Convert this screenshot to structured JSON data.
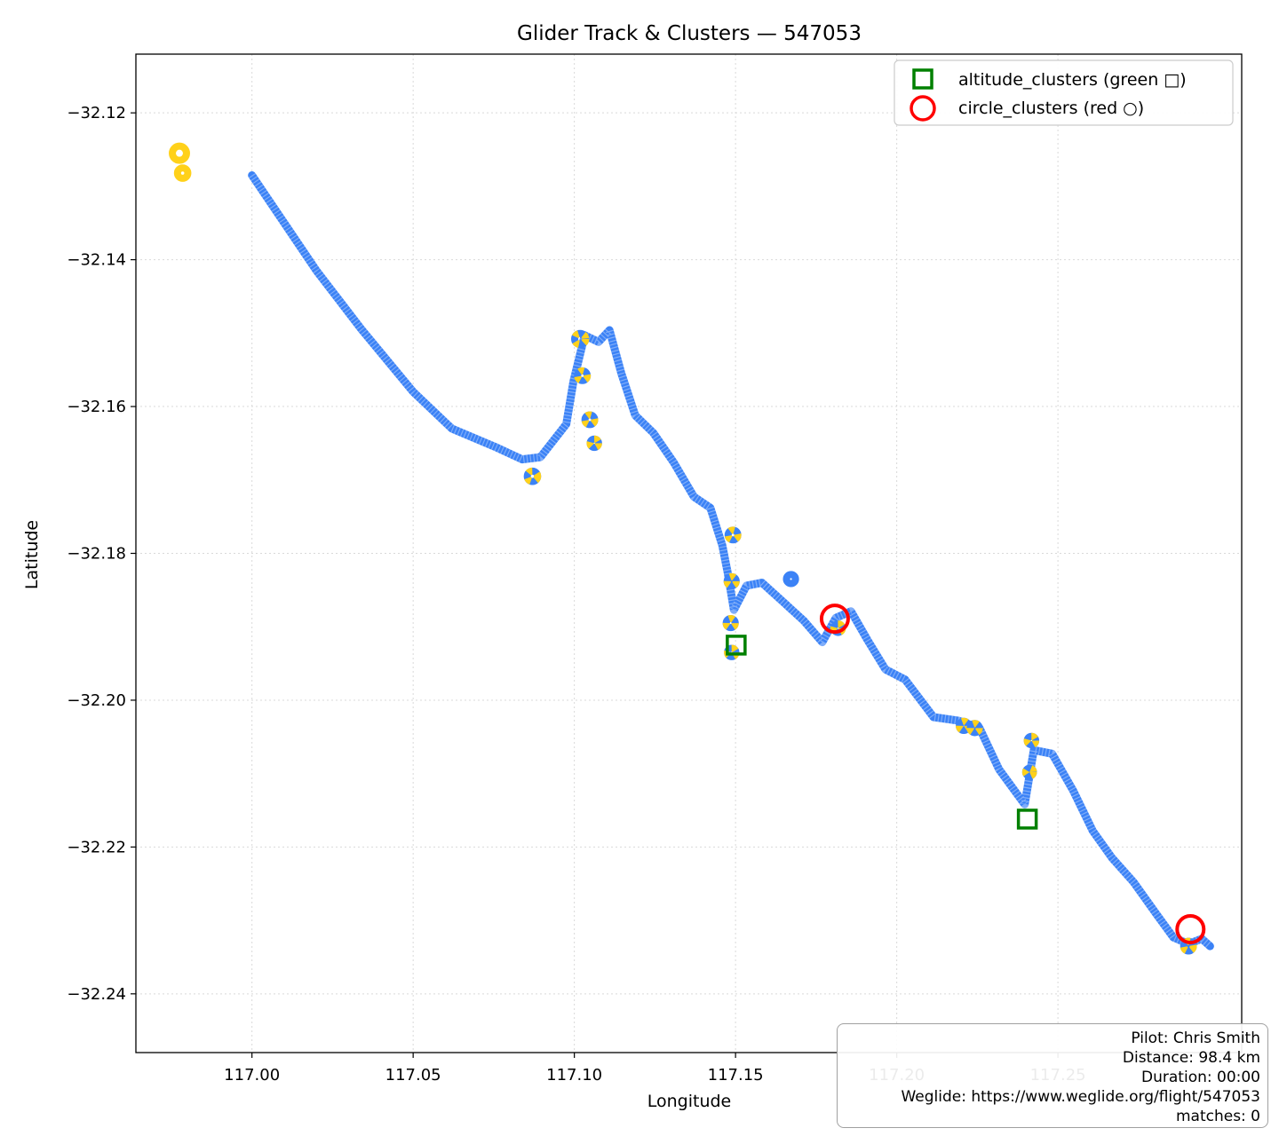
{
  "chart_data": {
    "type": "line",
    "title": "Glider Track & Clusters — 547053",
    "xlabel": "Longitude",
    "ylabel": "Latitude",
    "xlim": [
      116.964,
      117.307
    ],
    "ylim": [
      -32.248,
      -32.112
    ],
    "xticks": [
      117.0,
      117.05,
      117.1,
      117.15,
      117.2,
      117.25
    ],
    "xtick_labels": [
      "117.00",
      "117.05",
      "117.10",
      "117.15",
      "117.20",
      "117.25"
    ],
    "yticks": [
      -32.12,
      -32.14,
      -32.16,
      -32.18,
      -32.2,
      -32.22,
      -32.24
    ],
    "ytick_labels": [
      "−32.12",
      "−32.14",
      "−32.16",
      "−32.18",
      "−32.20",
      "−32.22",
      "−32.24"
    ],
    "grid": true,
    "legend_position": "top-right",
    "colors": {
      "track": "#3b82f6",
      "climb": "#ffd11a",
      "altitude_cluster": "#008000",
      "circle_cluster": "#ff0000"
    },
    "track": [
      [
        117.0,
        -32.1285
      ],
      [
        117.02,
        -32.1415
      ],
      [
        117.034,
        -32.1495
      ],
      [
        117.05,
        -32.158
      ],
      [
        117.062,
        -32.163
      ],
      [
        117.0755,
        -32.1655
      ],
      [
        117.0838,
        -32.1672
      ],
      [
        117.0895,
        -32.1669
      ],
      [
        117.0975,
        -32.1624
      ],
      [
        117.0997,
        -32.1566
      ],
      [
        117.1032,
        -32.1503
      ],
      [
        117.1075,
        -32.1512
      ],
      [
        117.1109,
        -32.1496
      ],
      [
        117.1146,
        -32.1555
      ],
      [
        117.1189,
        -32.1612
      ],
      [
        117.1245,
        -32.1636
      ],
      [
        117.1308,
        -32.1676
      ],
      [
        117.1371,
        -32.1723
      ],
      [
        117.1422,
        -32.1738
      ],
      [
        117.1459,
        -32.1789
      ],
      [
        117.1476,
        -32.1827
      ],
      [
        117.1495,
        -32.1877
      ],
      [
        117.1534,
        -32.1844
      ],
      [
        117.1582,
        -32.184
      ],
      [
        117.1645,
        -32.1865
      ],
      [
        117.1712,
        -32.1892
      ],
      [
        117.1769,
        -32.1921
      ],
      [
        117.1811,
        -32.1888
      ],
      [
        117.1858,
        -32.1879
      ],
      [
        117.1908,
        -32.1917
      ],
      [
        117.1965,
        -32.1958
      ],
      [
        117.2026,
        -32.1972
      ],
      [
        117.2114,
        -32.2023
      ],
      [
        117.2192,
        -32.2028
      ],
      [
        117.2257,
        -32.2038
      ],
      [
        117.2317,
        -32.2094
      ],
      [
        117.2372,
        -32.2127
      ],
      [
        117.2397,
        -32.2142
      ],
      [
        117.2425,
        -32.2068
      ],
      [
        117.2482,
        -32.2073
      ],
      [
        117.2547,
        -32.2123
      ],
      [
        117.2608,
        -32.2178
      ],
      [
        117.2668,
        -32.2215
      ],
      [
        117.2735,
        -32.2248
      ],
      [
        117.2805,
        -32.2291
      ],
      [
        117.2858,
        -32.2323
      ],
      [
        117.2905,
        -32.2332
      ],
      [
        117.2946,
        -32.2325
      ],
      [
        117.2972,
        -32.2335
      ]
    ],
    "thermals": [
      {
        "lon": 116.9775,
        "lat": -32.1255,
        "r": 0.0022,
        "color": "climb"
      },
      {
        "lon": 116.9785,
        "lat": -32.1282,
        "r": 0.0016,
        "color": "climb"
      },
      {
        "lon": 117.087,
        "lat": -32.1695,
        "r": 0.0016,
        "color": "mixed"
      },
      {
        "lon": 117.1018,
        "lat": -32.1508,
        "r": 0.0017,
        "color": "mixed"
      },
      {
        "lon": 117.1025,
        "lat": -32.1558,
        "r": 0.0015,
        "color": "mixed"
      },
      {
        "lon": 117.1048,
        "lat": -32.1618,
        "r": 0.0015,
        "color": "mixed"
      },
      {
        "lon": 117.1062,
        "lat": -32.165,
        "r": 0.0013,
        "color": "mixed"
      },
      {
        "lon": 117.1492,
        "lat": -32.1775,
        "r": 0.0015,
        "color": "mixed"
      },
      {
        "lon": 117.1488,
        "lat": -32.1838,
        "r": 0.0014,
        "color": "mixed"
      },
      {
        "lon": 117.1485,
        "lat": -32.1895,
        "r": 0.0014,
        "color": "mixed"
      },
      {
        "lon": 117.1488,
        "lat": -32.1935,
        "r": 0.0013,
        "color": "mixed"
      },
      {
        "lon": 117.1672,
        "lat": -32.1835,
        "r": 0.0014,
        "color": "track"
      },
      {
        "lon": 117.1818,
        "lat": -32.1902,
        "r": 0.0013,
        "color": "mixed"
      },
      {
        "lon": 117.2208,
        "lat": -32.2035,
        "r": 0.0014,
        "color": "mixed"
      },
      {
        "lon": 117.2242,
        "lat": -32.2038,
        "r": 0.0014,
        "color": "mixed"
      },
      {
        "lon": 117.2418,
        "lat": -32.2055,
        "r": 0.0013,
        "color": "mixed"
      },
      {
        "lon": 117.2412,
        "lat": -32.2098,
        "r": 0.0012,
        "color": "mixed"
      },
      {
        "lon": 117.2905,
        "lat": -32.2335,
        "r": 0.0015,
        "color": "mixed"
      }
    ],
    "altitude_clusters": [
      {
        "lon": 117.1502,
        "lat": -32.1925
      },
      {
        "lon": 117.2405,
        "lat": -32.2162
      }
    ],
    "circle_clusters": [
      {
        "lon": 117.1808,
        "lat": -32.1889
      },
      {
        "lon": 117.2911,
        "lat": -32.2312
      }
    ],
    "legend": [
      {
        "label": "altitude_clusters (green □)",
        "marker": "square"
      },
      {
        "label": "circle_clusters (red ○)",
        "marker": "circle"
      }
    ]
  },
  "info": {
    "pilot": "Pilot: Chris Smith",
    "distance": "Distance: 98.4 km",
    "duration": "Duration: 00:00",
    "weglide": "Weglide: https://www.weglide.org/flight/547053",
    "matches": "matches: 0"
  }
}
